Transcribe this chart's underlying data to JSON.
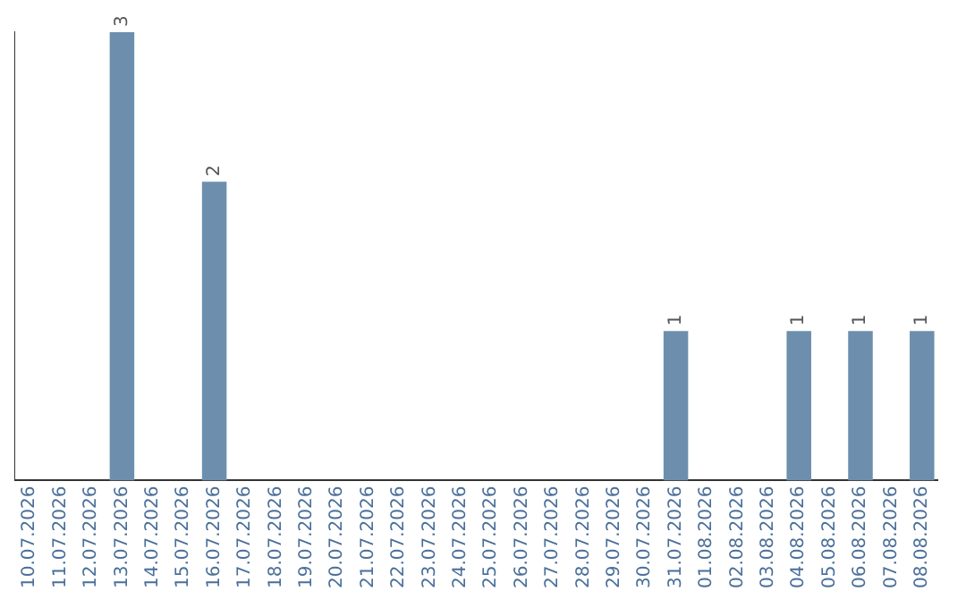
{
  "chart_data": {
    "type": "bar",
    "categories": [
      "10.07.2026",
      "11.07.2026",
      "12.07.2026",
      "13.07.2026",
      "14.07.2026",
      "15.07.2026",
      "16.07.2026",
      "17.07.2026",
      "18.07.2026",
      "19.07.2026",
      "20.07.2026",
      "21.07.2026",
      "22.07.2026",
      "23.07.2026",
      "24.07.2026",
      "25.07.2026",
      "26.07.2026",
      "27.07.2026",
      "28.07.2026",
      "29.07.2026",
      "30.07.2026",
      "31.07.2026",
      "01.08.2026",
      "02.08.2026",
      "03.08.2026",
      "04.08.2026",
      "05.08.2026",
      "06.08.2026",
      "07.08.2026",
      "08.08.2026"
    ],
    "values": [
      0,
      0,
      0,
      3,
      0,
      0,
      2,
      0,
      0,
      0,
      0,
      0,
      0,
      0,
      0,
      0,
      0,
      0,
      0,
      0,
      0,
      1,
      0,
      0,
      0,
      1,
      0,
      1,
      0,
      1
    ],
    "value_labels": [
      null,
      null,
      null,
      "3",
      null,
      null,
      "2",
      null,
      null,
      null,
      null,
      null,
      null,
      null,
      null,
      null,
      null,
      null,
      null,
      null,
      null,
      "1",
      null,
      null,
      null,
      "1",
      null,
      "1",
      null,
      "1"
    ],
    "color": "#6d8fad",
    "grid": false,
    "legend": false,
    "tick_labels": "x"
  }
}
